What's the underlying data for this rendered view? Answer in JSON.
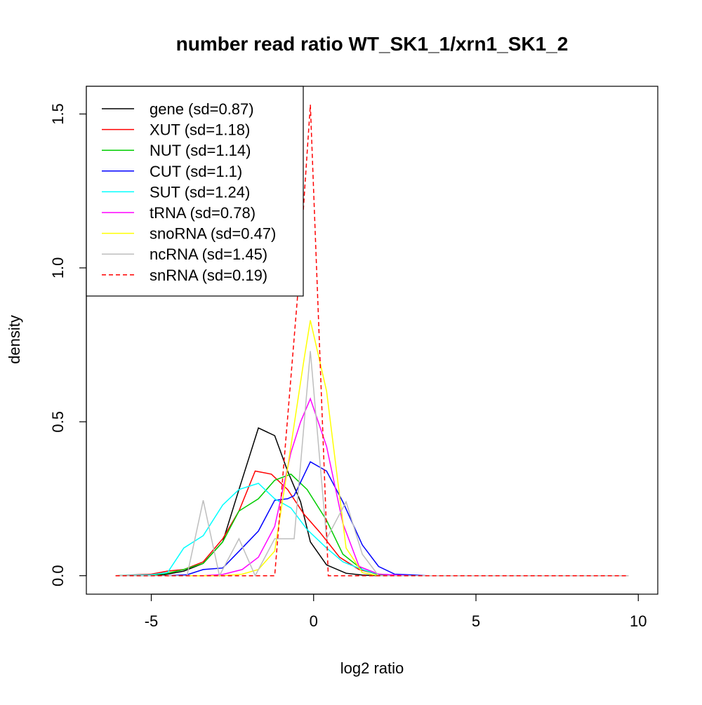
{
  "chart_data": {
    "type": "line",
    "title": "number read ratio WT_SK1_1/xrn1_SK1_2",
    "xlabel": "log2 ratio",
    "ylabel": "density",
    "xlim": [
      -7.0,
      10.6
    ],
    "ylim": [
      -0.06,
      1.59
    ],
    "xticks": [
      -5,
      0,
      5,
      10
    ],
    "xtick_labels": [
      "-5",
      "0",
      "5",
      "10"
    ],
    "yticks": [
      0.0,
      0.5,
      1.0,
      1.5
    ],
    "ytick_labels": [
      "0.0",
      "0.5",
      "1.0",
      "1.5"
    ],
    "grid": false,
    "legend_position": "top-left",
    "series": [
      {
        "name": "gene (sd=0.87)",
        "color": "#000000",
        "dashed": false,
        "x": [
          -6.1,
          -5.0,
          -4.6,
          -4.0,
          -3.4,
          -2.8,
          -2.3,
          -1.7,
          -1.2,
          -0.8,
          -0.4,
          -0.1,
          0.4,
          1.0,
          1.5,
          2.0,
          3.0,
          9.7
        ],
        "y": [
          0.0,
          0.0,
          0.003,
          0.015,
          0.04,
          0.11,
          0.28,
          0.48,
          0.455,
          0.34,
          0.24,
          0.11,
          0.035,
          0.008,
          0.002,
          0.0,
          0.0,
          0.0
        ]
      },
      {
        "name": "XUT (sd=1.18)",
        "color": "#ff0000",
        "dashed": false,
        "x": [
          -6.1,
          -5.0,
          -4.5,
          -4.0,
          -3.4,
          -2.8,
          -2.3,
          -1.8,
          -1.3,
          -0.8,
          -0.3,
          0.2,
          0.8,
          1.4,
          2.0,
          3.0,
          9.7
        ],
        "y": [
          0.0,
          0.005,
          0.015,
          0.02,
          0.045,
          0.12,
          0.21,
          0.34,
          0.33,
          0.28,
          0.2,
          0.14,
          0.06,
          0.02,
          0.005,
          0.0,
          0.0
        ]
      },
      {
        "name": "NUT (sd=1.14)",
        "color": "#00cd00",
        "dashed": false,
        "x": [
          -6.1,
          -5.0,
          -4.5,
          -4.0,
          -3.4,
          -2.8,
          -2.3,
          -1.7,
          -1.2,
          -0.7,
          -0.2,
          0.4,
          0.9,
          1.5,
          2.0,
          3.0,
          9.7
        ],
        "y": [
          0.0,
          0.002,
          0.008,
          0.02,
          0.04,
          0.11,
          0.21,
          0.25,
          0.31,
          0.33,
          0.28,
          0.18,
          0.07,
          0.02,
          0.003,
          0.0,
          0.0
        ]
      },
      {
        "name": "CUT (sd=1.1)",
        "color": "#0000ff",
        "dashed": false,
        "x": [
          -6.1,
          -4.5,
          -3.9,
          -3.4,
          -2.8,
          -2.2,
          -1.7,
          -1.2,
          -0.8,
          -0.6,
          -0.1,
          0.4,
          0.9,
          1.5,
          2.0,
          2.5,
          3.1,
          3.5,
          9.7
        ],
        "y": [
          0.0,
          0.0,
          0.003,
          0.02,
          0.025,
          0.09,
          0.145,
          0.245,
          0.25,
          0.26,
          0.37,
          0.34,
          0.24,
          0.1,
          0.03,
          0.005,
          0.002,
          0.0,
          0.0
        ]
      },
      {
        "name": "SUT (sd=1.24)",
        "color": "#00ffff",
        "dashed": false,
        "x": [
          -6.1,
          -5.0,
          -4.5,
          -4.0,
          -3.4,
          -2.8,
          -2.3,
          -1.7,
          -1.2,
          -0.7,
          -0.2,
          0.4,
          0.9,
          1.5,
          2.0,
          3.0,
          9.7
        ],
        "y": [
          0.0,
          0.003,
          0.01,
          0.09,
          0.13,
          0.23,
          0.28,
          0.3,
          0.25,
          0.22,
          0.15,
          0.09,
          0.045,
          0.02,
          0.005,
          0.0,
          0.0
        ]
      },
      {
        "name": "tRNA (sd=0.78)",
        "color": "#ff00ff",
        "dashed": false,
        "x": [
          -6.1,
          -3.4,
          -2.8,
          -2.2,
          -1.7,
          -1.2,
          -0.7,
          -0.4,
          -0.1,
          0.4,
          0.9,
          1.4,
          2.0,
          3.0,
          9.7
        ],
        "y": [
          0.0,
          0.0,
          0.004,
          0.02,
          0.06,
          0.16,
          0.4,
          0.5,
          0.575,
          0.42,
          0.17,
          0.03,
          0.005,
          0.0,
          0.0
        ]
      },
      {
        "name": "snoRNA (sd=0.47)",
        "color": "#ffff00",
        "dashed": false,
        "x": [
          -6.1,
          -2.8,
          -2.2,
          -1.7,
          -1.2,
          -0.8,
          -0.3,
          -0.1,
          0.4,
          1.0,
          1.5,
          2.0,
          9.7
        ],
        "y": [
          0.0,
          0.0,
          0.005,
          0.02,
          0.08,
          0.35,
          0.7,
          0.83,
          0.6,
          0.09,
          0.01,
          0.0,
          0.0
        ]
      },
      {
        "name": "ncRNA (sd=1.45)",
        "color": "#bebebe",
        "dashed": false,
        "x": [
          -6.1,
          -3.9,
          -3.4,
          -2.9,
          -2.3,
          -1.8,
          -1.2,
          -0.9,
          -0.6,
          -0.1,
          0.4,
          1.0,
          1.5,
          2.0,
          9.7
        ],
        "y": [
          0.0,
          0.0,
          0.245,
          0.0,
          0.12,
          0.0,
          0.12,
          0.12,
          0.12,
          0.73,
          0.12,
          0.24,
          0.07,
          0.0,
          0.0
        ]
      },
      {
        "name": "snRNA (sd=0.19)",
        "color": "#ff0000",
        "dashed": true,
        "x": [
          -6.1,
          -1.2,
          -0.5,
          -0.1,
          0.45,
          9.7
        ],
        "y": [
          0.0,
          0.0,
          0.9,
          1.53,
          0.0,
          0.0
        ]
      }
    ]
  }
}
